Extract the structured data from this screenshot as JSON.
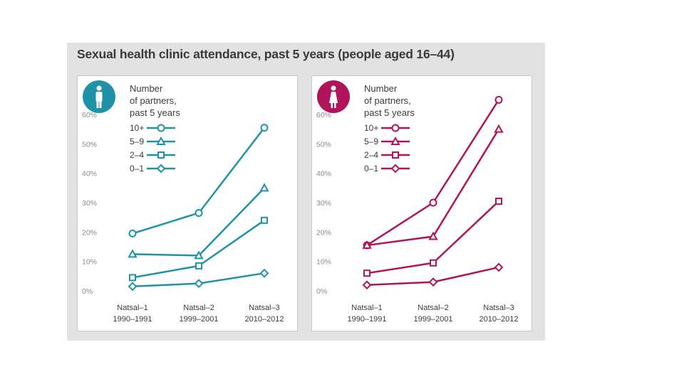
{
  "title": "Sexual health clinic attendance, past 5 years (people aged 16–44)",
  "chart_data": [
    {
      "type": "line",
      "panel": "men",
      "color": "#1e93a8",
      "icon": "male-person-icon",
      "legend_title": [
        "Number",
        "of partners,",
        "past 5 years"
      ],
      "categories": [
        {
          "line1": "Natsal–1",
          "line2": "1990–1991"
        },
        {
          "line1": "Natsal–2",
          "line2": "1999–2001"
        },
        {
          "line1": "Natsal–3",
          "line2": "2010–2012"
        }
      ],
      "y_ticks": [
        "0%",
        "10%",
        "20%",
        "30%",
        "40%",
        "50%",
        "60%"
      ],
      "ylim": [
        0,
        60
      ],
      "series": [
        {
          "name": "10+",
          "marker": "circle",
          "values": [
            19.5,
            26.5,
            55.5
          ]
        },
        {
          "name": "5–9",
          "marker": "triangle",
          "values": [
            12.5,
            12,
            35
          ]
        },
        {
          "name": "2–4",
          "marker": "square",
          "values": [
            4.5,
            8.5,
            24
          ]
        },
        {
          "name": "0–1",
          "marker": "diamond",
          "values": [
            1.5,
            2.5,
            6
          ]
        }
      ]
    },
    {
      "type": "line",
      "panel": "women",
      "color": "#b0145a",
      "icon": "female-person-icon",
      "legend_title": [
        "Number",
        "of partners,",
        "past 5 years"
      ],
      "categories": [
        {
          "line1": "Natsal–1",
          "line2": "1990–1991"
        },
        {
          "line1": "Natsal–2",
          "line2": "1999–2001"
        },
        {
          "line1": "Natsal–3",
          "line2": "2010–2012"
        }
      ],
      "y_ticks": [
        "0%",
        "10%",
        "20%",
        "30%",
        "40%",
        "50%",
        "60%"
      ],
      "ylim": [
        0,
        60
      ],
      "series": [
        {
          "name": "10+",
          "marker": "circle",
          "values": [
            15.5,
            30,
            65
          ]
        },
        {
          "name": "5–9",
          "marker": "triangle",
          "values": [
            15.5,
            18.5,
            55
          ]
        },
        {
          "name": "2–4",
          "marker": "square",
          "values": [
            6,
            9.5,
            30.5
          ]
        },
        {
          "name": "0–1",
          "marker": "diamond",
          "values": [
            2,
            3,
            8
          ]
        }
      ]
    }
  ]
}
